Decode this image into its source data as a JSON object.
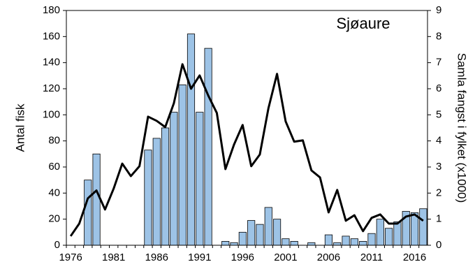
{
  "chart_data": {
    "type": "bar-line",
    "annotation": "Sjøaure",
    "ylabel": "Antal fisk",
    "y2label": "Samla fangst i fylket (x1000)",
    "categories": [
      "1976",
      null,
      null,
      null,
      null,
      "1981",
      null,
      null,
      null,
      null,
      "1986",
      null,
      null,
      null,
      null,
      "1991",
      null,
      null,
      null,
      null,
      "1996",
      null,
      null,
      null,
      null,
      "2001",
      null,
      null,
      null,
      null,
      "2006",
      null,
      null,
      null,
      null,
      "2011",
      null,
      null,
      null,
      null,
      "2016",
      null
    ],
    "series": [
      {
        "type": "bar",
        "color": "#9dc3e6",
        "values": [
          0,
          0,
          50,
          70,
          0,
          0,
          0,
          0,
          0,
          73,
          82,
          90,
          102,
          123,
          162,
          102,
          151,
          0,
          3,
          2,
          10,
          19,
          16,
          29,
          20,
          5,
          3,
          0,
          2,
          0,
          8,
          2,
          7,
          5,
          3,
          9,
          20,
          13,
          18,
          26,
          25,
          28
        ]
      },
      {
        "type": "line",
        "axis": "y2",
        "color": "#000000",
        "values": [
          0.35,
          0.83,
          1.8,
          2.1,
          1.37,
          2.17,
          3.13,
          2.65,
          3.03,
          4.93,
          4.77,
          4.53,
          5.44,
          6.94,
          6.0,
          6.51,
          5.74,
          5.07,
          2.92,
          3.86,
          4.61,
          3.03,
          3.48,
          5.25,
          6.57,
          4.75,
          3.97,
          4.02,
          2.87,
          2.6,
          1.26,
          2.12,
          0.94,
          1.15,
          0.54,
          1.05,
          1.18,
          0.83,
          0.83,
          1.1,
          1.18,
          0.94
        ]
      }
    ],
    "ylim": [
      0,
      180
    ],
    "yticks": [
      0,
      20,
      40,
      60,
      80,
      100,
      120,
      140,
      160,
      180
    ],
    "y2lim": [
      0,
      9
    ],
    "y2ticks": [
      0,
      1,
      2,
      3,
      4,
      5,
      6,
      7,
      8,
      9
    ],
    "grid": false
  }
}
